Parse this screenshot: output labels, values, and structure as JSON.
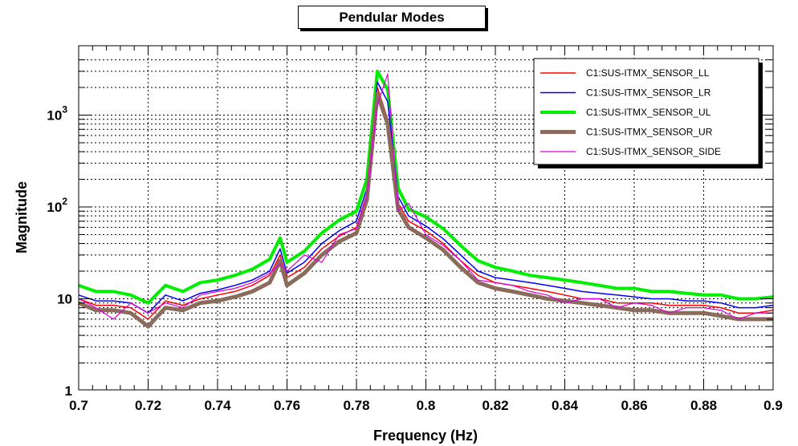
{
  "chart_data": {
    "type": "line",
    "title": "Pendular Modes",
    "xlabel": "Frequency (Hz)",
    "ylabel": "Magnitude",
    "xlim": [
      0.7,
      0.9
    ],
    "ylim": [
      1,
      4000
    ],
    "y_scale": "log",
    "grid": true,
    "legend_position": "top-right",
    "x_ticks": [
      "0.7",
      "0.72",
      "0.74",
      "0.76",
      "0.78",
      "0.8",
      "0.82",
      "0.84",
      "0.86",
      "0.88",
      "0.9"
    ],
    "y_ticks": [
      {
        "value": 1,
        "base": "1",
        "exp": ""
      },
      {
        "value": 10,
        "base": "10",
        "exp": ""
      },
      {
        "value": 100,
        "base": "10",
        "exp": "2"
      },
      {
        "value": 1000,
        "base": "10",
        "exp": "3"
      }
    ],
    "x": [
      0.7,
      0.705,
      0.71,
      0.715,
      0.72,
      0.725,
      0.73,
      0.735,
      0.74,
      0.745,
      0.75,
      0.755,
      0.758,
      0.76,
      0.765,
      0.77,
      0.775,
      0.78,
      0.783,
      0.786,
      0.789,
      0.792,
      0.795,
      0.8,
      0.805,
      0.81,
      0.815,
      0.82,
      0.825,
      0.83,
      0.835,
      0.84,
      0.845,
      0.85,
      0.855,
      0.86,
      0.865,
      0.87,
      0.875,
      0.88,
      0.885,
      0.89,
      0.895,
      0.9
    ],
    "series": [
      {
        "name": "C1:SUS-ITMX_SENSOR_LL",
        "color": "#ff0000",
        "width": 1.5,
        "values": [
          10,
          8.5,
          8.5,
          8,
          6,
          9.5,
          8.5,
          10,
          11,
          12,
          14,
          18,
          30,
          17,
          22,
          35,
          48,
          60,
          140,
          2000,
          900,
          110,
          70,
          55,
          40,
          26,
          18,
          15,
          14,
          13,
          12,
          11,
          10,
          10,
          9,
          9,
          9,
          8.5,
          8.5,
          8.5,
          8,
          7,
          7,
          7.5
        ]
      },
      {
        "name": "C1:SUS-ITMX_SENSOR_LR",
        "color": "#0000ff",
        "width": 1.5,
        "values": [
          11,
          9.5,
          9.5,
          9,
          7,
          11,
          9.5,
          11.5,
          12.5,
          14,
          16,
          20,
          35,
          19,
          25,
          40,
          55,
          70,
          160,
          2300,
          1400,
          130,
          80,
          62,
          45,
          30,
          20,
          17,
          16,
          15,
          14,
          13,
          12,
          11.5,
          11,
          10.5,
          10,
          10,
          9.5,
          9.5,
          9,
          8,
          8,
          8.5
        ]
      },
      {
        "name": "C1:SUS-ITMX_SENSOR_UL",
        "color": "#00ee00",
        "width": 4,
        "values": [
          14,
          12,
          12,
          11,
          9,
          14,
          12,
          15,
          16,
          18,
          21,
          27,
          46,
          25,
          33,
          52,
          72,
          90,
          200,
          3000,
          1900,
          160,
          95,
          78,
          58,
          38,
          26,
          22,
          20,
          18,
          17,
          16,
          15,
          14,
          13,
          13,
          12,
          12,
          11.5,
          11,
          11,
          10,
          10,
          10.5
        ]
      },
      {
        "name": "C1:SUS-ITMX_SENSOR_UR",
        "color": "#8b6b5b",
        "width": 5,
        "values": [
          9,
          7.5,
          7.5,
          7,
          5,
          8,
          7.5,
          9,
          9.5,
          10.5,
          12,
          15,
          26,
          14,
          19,
          30,
          42,
          52,
          120,
          1700,
          800,
          95,
          60,
          46,
          34,
          22,
          15,
          13,
          12,
          11,
          10,
          9.5,
          9,
          8.5,
          8,
          7.5,
          7.5,
          7,
          7,
          7,
          6.5,
          6,
          6,
          6
        ]
      },
      {
        "name": "C1:SUS-ITMX_SENSOR_SIDE",
        "color": "#e000e0",
        "width": 1.2,
        "values": [
          10,
          8,
          6,
          9,
          7,
          9,
          8,
          11,
          12,
          13,
          15,
          19,
          24,
          20,
          30,
          25,
          50,
          58,
          130,
          1300,
          2800,
          90,
          110,
          50,
          38,
          26,
          16,
          15,
          14,
          12,
          11,
          9,
          10,
          10,
          8,
          9,
          8.5,
          7,
          8,
          8,
          7.5,
          6,
          7,
          7
        ]
      }
    ]
  }
}
